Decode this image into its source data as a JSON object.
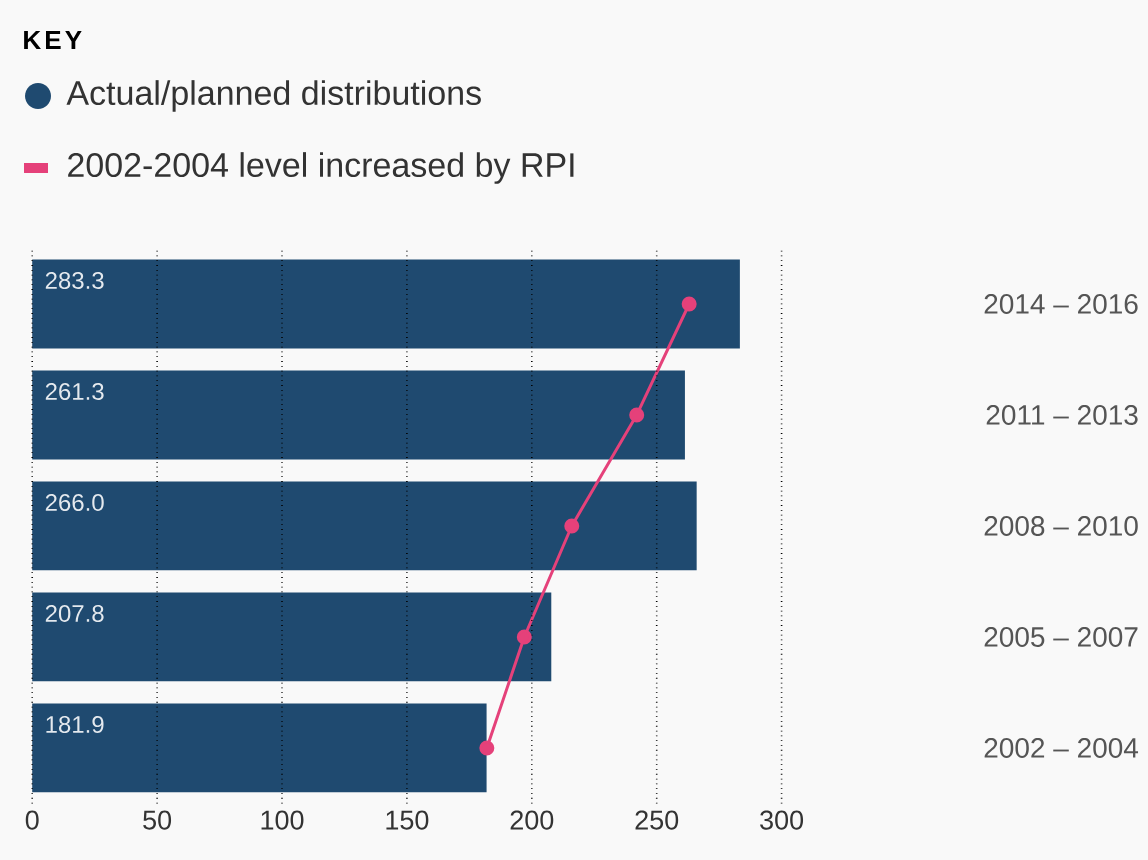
{
  "chart_data": {
    "type": "bar",
    "orientation": "horizontal",
    "legend_title": "KEY",
    "legend": "top left",
    "categories": [
      "2014 – 2016",
      "2011 – 2013",
      "2008 – 2010",
      "2005 – 2007",
      "2002 – 2004"
    ],
    "series": [
      {
        "name": "Actual/planned distributions",
        "color": "#1f4a70",
        "values": [
          283.3,
          261.3,
          266.0,
          207.8,
          181.9
        ],
        "value_labels": [
          "283.3",
          "261.3",
          "266.0",
          "207.8",
          "181.9"
        ]
      },
      {
        "name": "2002-2004 level increased by RPI",
        "type": "line",
        "marker": "circle",
        "color": "#e5417a",
        "values": [
          263,
          242,
          216,
          197,
          182
        ]
      }
    ],
    "xlim": [
      0,
      300
    ],
    "xticks": [
      0,
      50,
      100,
      150,
      200,
      250,
      300
    ],
    "grid": "x"
  }
}
